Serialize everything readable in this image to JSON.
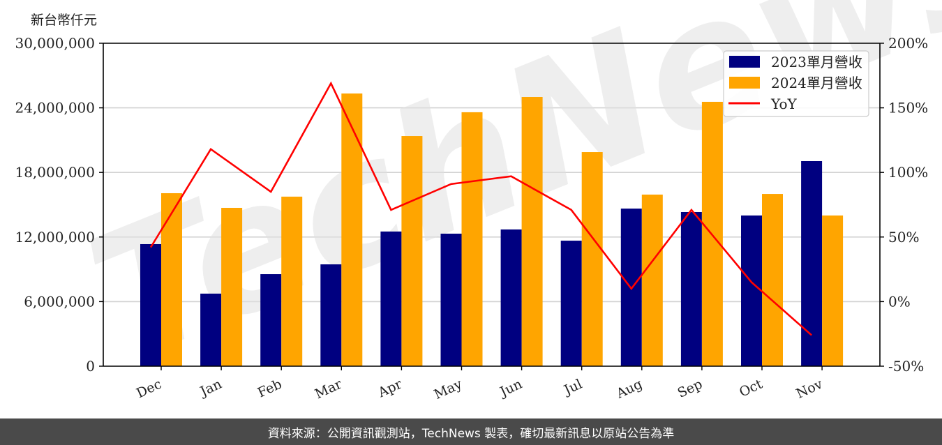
{
  "chart_data": {
    "type": "bar",
    "title": "",
    "ylabel": "新台幣仟元",
    "xlabel": "",
    "categories": [
      "Dec",
      "Jan",
      "Feb",
      "Mar",
      "Apr",
      "May",
      "Jun",
      "Jul",
      "Aug",
      "Sep",
      "Oct",
      "Nov"
    ],
    "series": [
      {
        "name": "2023單月營收",
        "type": "bar",
        "color": "#000080",
        "values": [
          11340000,
          6740000,
          8550000,
          9460000,
          12510000,
          12310000,
          12700000,
          11660000,
          14640000,
          14320000,
          14000000,
          19050000
        ]
      },
      {
        "name": "2024單月營收",
        "type": "bar",
        "color": "#FFA500",
        "values": [
          16070000,
          14710000,
          15750000,
          25330000,
          21380000,
          23590000,
          25010000,
          19890000,
          15940000,
          24560000,
          16000000,
          14000000
        ]
      },
      {
        "name": "YoY",
        "type": "line",
        "axis": "right",
        "color": "#FF0000",
        "values": [
          42,
          118,
          85,
          169,
          71,
          91,
          97,
          71,
          10,
          71,
          15,
          -26
        ]
      }
    ],
    "ylim": [
      0,
      30000000
    ],
    "yticks": [
      "0",
      "6,000,000",
      "12,000,000",
      "18,000,000",
      "24,000,000",
      "30,000,000"
    ],
    "y2lim": [
      -50,
      200
    ],
    "y2ticks": [
      "-50%",
      "0%",
      "50%",
      "100%",
      "150%",
      "200%"
    ],
    "grid": true,
    "legend_position": "upper right",
    "watermark": "TechNews"
  },
  "unit_label": "新台幣仟元",
  "footer": {
    "text": "資料來源：公開資訊觀測站，TechNews 製表，確切最新訊息以原站公告為準"
  }
}
